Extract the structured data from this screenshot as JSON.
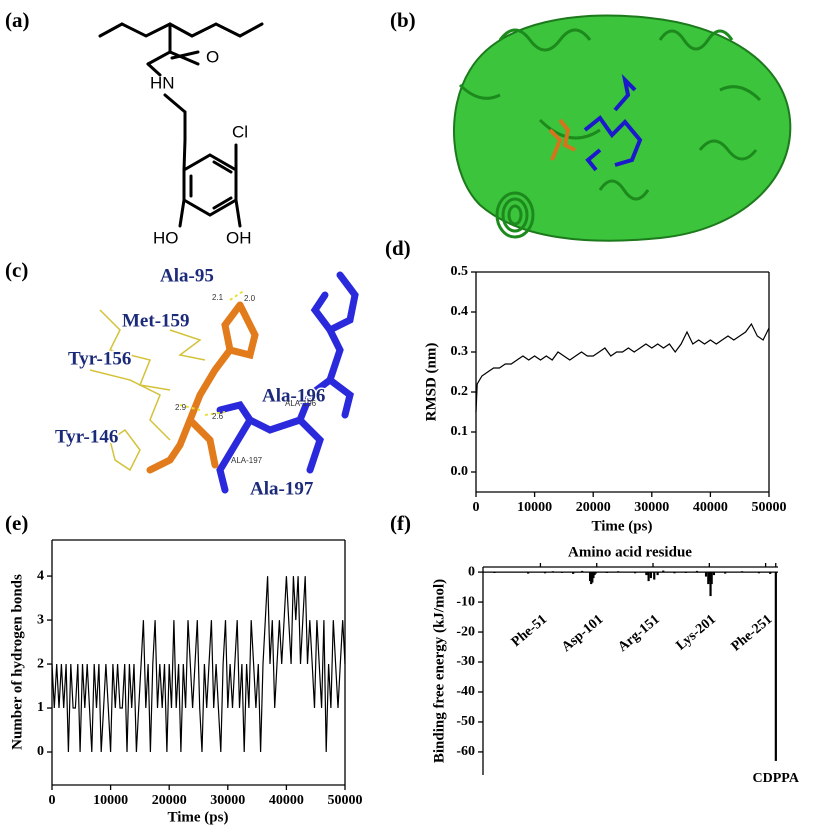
{
  "figures": [
    {
      "label": "(a)",
      "atoms": [
        "O",
        "HN",
        "Cl",
        "HO",
        "OH"
      ]
    },
    {
      "label": "(b)"
    },
    {
      "label": "(c)",
      "residues": [
        "Ala-95",
        "Met-159",
        "Tyr-156",
        "Ala-196",
        "Tyr-146",
        "Ala-197"
      ],
      "notes": [
        "2.1",
        "2.0",
        "2.9",
        "2.6",
        "ALA-196",
        "ALA-197"
      ]
    }
  ],
  "chart_data": [
    {
      "type": "line",
      "label": "(d)",
      "xlabel": "Time (ps)",
      "ylabel": "RMSD (nm)",
      "color": "#000000",
      "x": [
        0,
        200,
        1000,
        2000,
        3000,
        4000,
        5000,
        6000,
        7000,
        8000,
        9000,
        10000,
        11000,
        12000,
        13000,
        14000,
        15000,
        16000,
        17000,
        18000,
        19000,
        20000,
        21000,
        22000,
        23000,
        24000,
        25000,
        26000,
        27000,
        28000,
        29000,
        30000,
        31000,
        32000,
        33000,
        34000,
        35000,
        36000,
        37000,
        38000,
        39000,
        40000,
        41000,
        42000,
        43000,
        44000,
        45000,
        46000,
        47000,
        48000,
        49000,
        50000
      ],
      "values": [
        0.15,
        0.22,
        0.24,
        0.25,
        0.26,
        0.26,
        0.27,
        0.27,
        0.28,
        0.29,
        0.28,
        0.29,
        0.28,
        0.29,
        0.28,
        0.3,
        0.29,
        0.28,
        0.29,
        0.3,
        0.29,
        0.29,
        0.3,
        0.31,
        0.29,
        0.3,
        0.3,
        0.31,
        0.3,
        0.31,
        0.32,
        0.31,
        0.32,
        0.31,
        0.32,
        0.3,
        0.32,
        0.35,
        0.32,
        0.33,
        0.32,
        0.33,
        0.32,
        0.33,
        0.34,
        0.33,
        0.34,
        0.35,
        0.37,
        0.34,
        0.33,
        0.36
      ],
      "xlim": [
        0,
        50000
      ],
      "xticks": [
        0,
        10000,
        20000,
        30000,
        40000,
        50000
      ],
      "ylim": [
        -0.05,
        0.5
      ],
      "yticks": [
        {
          "value": 0,
          "label": "0.0"
        },
        0.1,
        0.2,
        0.3,
        0.4,
        0.5
      ]
    },
    {
      "type": "line",
      "label": "(e)",
      "xlabel": "Time (ps)",
      "ylabel": "Number of hydrogen bonds",
      "color": "#000000",
      "x": [
        0,
        400,
        800,
        1200,
        1600,
        2000,
        2400,
        2800,
        3200,
        3600,
        4000,
        4400,
        4800,
        5200,
        5600,
        6000,
        6400,
        6800,
        7200,
        7600,
        8000,
        8400,
        8800,
        9200,
        9600,
        10000,
        10400,
        10800,
        11200,
        11600,
        12000,
        12400,
        12800,
        13200,
        13600,
        14000,
        14400,
        14800,
        15200,
        15600,
        16000,
        16400,
        16800,
        17200,
        17600,
        18000,
        18400,
        18800,
        19200,
        19600,
        20000,
        20400,
        20800,
        21200,
        21600,
        22000,
        22400,
        22800,
        23200,
        23600,
        24000,
        24400,
        24800,
        25200,
        25600,
        26000,
        26400,
        26800,
        27200,
        27600,
        28000,
        28400,
        28800,
        29200,
        29600,
        30000,
        30400,
        30800,
        31200,
        31600,
        32000,
        32400,
        32800,
        33200,
        33600,
        34000,
        34400,
        34800,
        35200,
        35600,
        36000,
        36400,
        36800,
        37200,
        37600,
        38000,
        38400,
        38800,
        39200,
        39600,
        40000,
        40400,
        40800,
        41200,
        41600,
        42000,
        42400,
        42800,
        43200,
        43600,
        44000,
        44400,
        44800,
        45200,
        45600,
        46000,
        46400,
        46800,
        47200,
        47600,
        48000,
        48400,
        48800,
        49200,
        49600,
        50000
      ],
      "values": [
        2,
        1,
        2,
        1,
        2,
        1,
        2,
        0,
        2,
        1,
        1,
        2,
        0,
        2,
        1,
        2,
        1,
        0,
        2,
        1,
        2,
        0,
        1,
        2,
        1,
        0,
        2,
        1,
        2,
        1,
        1,
        2,
        0,
        2,
        1,
        2,
        0,
        1,
        2,
        3,
        1,
        2,
        0,
        2,
        3,
        1,
        2,
        1,
        2,
        0,
        2,
        1,
        3,
        1,
        2,
        0,
        2,
        1,
        3,
        2,
        1,
        2,
        3,
        1,
        0,
        2,
        1,
        2,
        3,
        1,
        2,
        1,
        0,
        2,
        3,
        1,
        2,
        1,
        2,
        3,
        1,
        2,
        0,
        2,
        1,
        3,
        2,
        1,
        2,
        0,
        2,
        3,
        4,
        2,
        3,
        1,
        2,
        3,
        2,
        3,
        4,
        3,
        2,
        4,
        3,
        4,
        2,
        3,
        4,
        2,
        3,
        2,
        1,
        3,
        2,
        1,
        3,
        0,
        2,
        1,
        3,
        2,
        1,
        2,
        3,
        2
      ],
      "xlim": [
        0,
        50000
      ],
      "xticks": [
        0,
        10000,
        20000,
        30000,
        40000,
        50000
      ],
      "ylim": [
        -0.75,
        4.82
      ],
      "yticks": [
        0,
        1,
        2,
        3,
        4
      ]
    },
    {
      "type": "bar",
      "label": "(f)",
      "xlabel": "Amino acid residue",
      "ylabel": "Binding free energy (kJ/mol)",
      "color": "#000000",
      "x": [
        10,
        25,
        40,
        55,
        62,
        70,
        80,
        88,
        95,
        96,
        97,
        98,
        99,
        100,
        110,
        120,
        135,
        145,
        147,
        149,
        152,
        155,
        160,
        170,
        180,
        190,
        198,
        200,
        201,
        202,
        203,
        205,
        215,
        230,
        245,
        255,
        260
      ],
      "values": [
        -0.3,
        0.2,
        -0.5,
        -0.4,
        0.3,
        -0.2,
        -0.6,
        0.4,
        -3,
        -4,
        -3.5,
        -2,
        -1,
        -0.5,
        -0.3,
        0.3,
        -0.4,
        -1,
        -3,
        -2,
        -2.5,
        -1,
        0.5,
        -0.4,
        -0.3,
        0.4,
        -1.5,
        -4,
        -3,
        -8,
        -4,
        -1,
        -0.5,
        0.3,
        -0.4,
        -0.6,
        -63
      ],
      "xlim": [
        0,
        262
      ],
      "xticks": [
        {
          "value": 51,
          "label": "Phe-51"
        },
        {
          "value": 101,
          "label": "Asp-101"
        },
        {
          "value": 151,
          "label": "Arg-151"
        },
        {
          "value": 201,
          "label": "Lys-201"
        },
        {
          "value": 251,
          "label": "Phe-251"
        },
        {
          "value": 260,
          "label": "CDPPA"
        }
      ],
      "ylim": [
        -67.7,
        1.7
      ],
      "yticks": [
        0,
        -10,
        -20,
        -30,
        -40,
        -50,
        -60
      ]
    }
  ]
}
